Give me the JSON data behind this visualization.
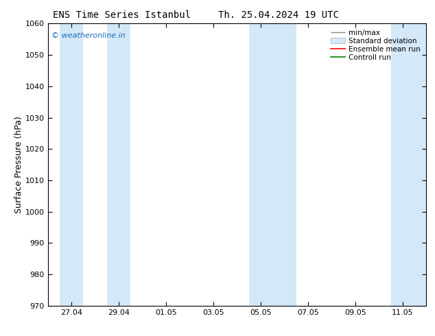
{
  "title_left": "ENS Time Series Istanbul",
  "title_right": "Th. 25.04.2024 19 UTC",
  "ylabel": "Surface Pressure (hPa)",
  "ylim": [
    970,
    1060
  ],
  "yticks": [
    970,
    980,
    990,
    1000,
    1010,
    1020,
    1030,
    1040,
    1050,
    1060
  ],
  "xtick_labels": [
    "27.04",
    "29.04",
    "01.05",
    "03.05",
    "05.05",
    "07.05",
    "09.05",
    "11.05"
  ],
  "xtick_positions": [
    1,
    3,
    5,
    7,
    9,
    11,
    13,
    15
  ],
  "xlim": [
    0,
    16
  ],
  "shaded_bands": [
    {
      "x_start": 0.5,
      "x_end": 1.5
    },
    {
      "x_start": 2.5,
      "x_end": 3.5
    },
    {
      "x_start": 8.5,
      "x_end": 9.5
    },
    {
      "x_start": 9.5,
      "x_end": 10.5
    },
    {
      "x_start": 14.5,
      "x_end": 16.0
    }
  ],
  "shade_color": "#d4e8f8",
  "background_color": "#ffffff",
  "watermark_text": "© weatheronline.in",
  "watermark_color": "#1a6ab5",
  "legend_entries": [
    {
      "label": "min/max",
      "color": "#aaaaaa",
      "type": "errorbar"
    },
    {
      "label": "Standard deviation",
      "color": "#d4e8f8",
      "type": "fill"
    },
    {
      "label": "Ensemble mean run",
      "color": "#ff0000",
      "type": "line"
    },
    {
      "label": "Controll run",
      "color": "#008000",
      "type": "line"
    }
  ],
  "title_fontsize": 11,
  "tick_fontsize": 8,
  "ylabel_fontsize": 9
}
